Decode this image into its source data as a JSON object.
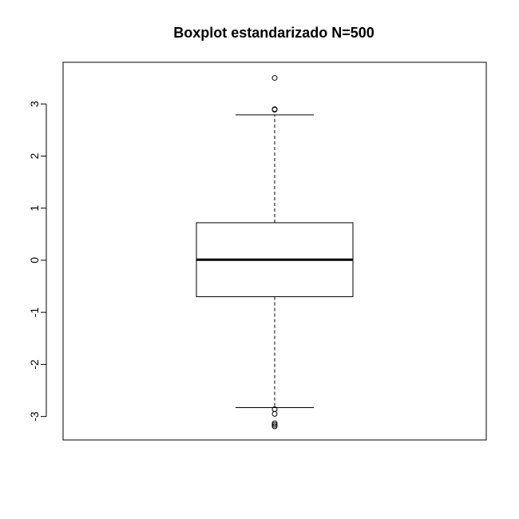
{
  "chart_data": {
    "type": "boxplot",
    "title": "Boxplot estandarizado N=500",
    "xlabel": "",
    "ylabel": "",
    "ylim": [
      -3.45,
      3.8
    ],
    "yticks": [
      -3,
      -2,
      -1,
      0,
      1,
      2,
      3
    ],
    "ytick_labels": [
      "-3",
      "-2",
      "-1",
      "0",
      "1",
      "2",
      "3"
    ],
    "grid": false,
    "legend": "none",
    "box": {
      "whisker_low": -2.83,
      "q1": -0.7,
      "median": 0.01,
      "q3": 0.72,
      "whisker_high": 2.79
    },
    "outliers": [
      3.5,
      2.9,
      2.89,
      -2.86,
      -2.95,
      -3.13,
      -3.16,
      -3.19
    ],
    "colors": {
      "line": "#000000",
      "background": "#ffffff"
    }
  }
}
